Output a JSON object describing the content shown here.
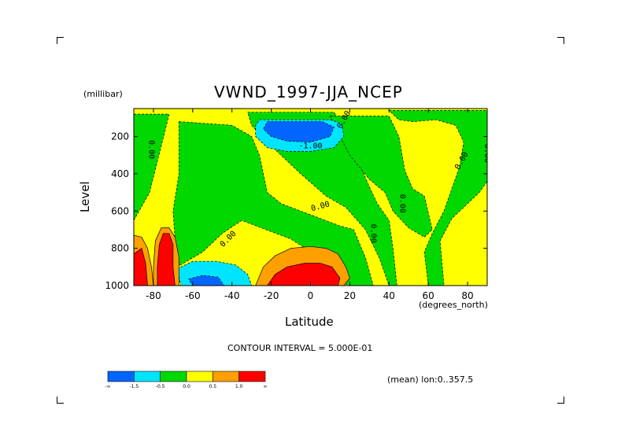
{
  "chart_data": {
    "type": "heatmap",
    "title": "VWND_1997-JJA_NCEP",
    "xlabel": "Latitude",
    "x_unit": "(degrees_north)",
    "ylabel": "Level",
    "y_unit": "(millibar)",
    "xlim": [
      -90,
      90
    ],
    "ylim": [
      1000,
      50
    ],
    "x_ticks": [
      -80,
      -60,
      -40,
      -20,
      0,
      20,
      40,
      60,
      80
    ],
    "x_tick_labels": [
      "-80",
      "-60",
      "-40",
      "-20",
      "0",
      "20",
      "40",
      "60",
      "80"
    ],
    "y_ticks": [
      200,
      400,
      600,
      800,
      1000
    ],
    "y_tick_labels": [
      "200",
      "400",
      "600",
      "800",
      "1000"
    ],
    "contour_interval_text": "CONTOUR INTERVAL = 5.000E-01",
    "mean_text": "(mean) lon:0..357.5",
    "legend": {
      "placement": "bottom-left",
      "colors": [
        "#0066ff",
        "#00e5ff",
        "#00d800",
        "#ffff00",
        "#ffa000",
        "#ff0000"
      ],
      "boundary_labels": [
        "-∞",
        "-1.5",
        "-0.5",
        "0.0",
        "0.5",
        "1.0",
        "∞"
      ]
    },
    "contour_labels": [
      {
        "text": "0.00",
        "lat": -81,
        "lev": 270,
        "rot": 90
      },
      {
        "text": "0.00",
        "lat": -42,
        "lev": 750,
        "rot": -45
      },
      {
        "text": "0.00",
        "lat": 5,
        "lev": 575,
        "rot": -15
      },
      {
        "text": "0.00",
        "lat": 17,
        "lev": 110,
        "rot": -60
      },
      {
        "text": "-1.00",
        "lat": 0,
        "lev": 250,
        "rot": 0
      },
      {
        "text": "0.00",
        "lat": 32,
        "lev": 720,
        "rot": 90
      },
      {
        "text": "0.00",
        "lat": 47,
        "lev": 560,
        "rot": 90
      },
      {
        "text": "0.00",
        "lat": 77,
        "lev": 330,
        "rot": -60
      },
      {
        "text": "0.00",
        "lat": 90,
        "lev": 290,
        "rot": 90
      }
    ],
    "regions": [
      {
        "value_class": "negative",
        "color": "#00d800",
        "poly": [
          [
            -90,
            80
          ],
          [
            -72,
            80
          ],
          [
            -76,
            250
          ],
          [
            -82,
            500
          ],
          [
            -90,
            650
          ]
        ]
      },
      {
        "value_class": "negative",
        "color": "#00d800",
        "poly": [
          [
            -67,
            120
          ],
          [
            -40,
            140
          ],
          [
            -30,
            200
          ],
          [
            -26,
            300
          ],
          [
            -22,
            500
          ],
          [
            -15,
            560
          ],
          [
            -5,
            600
          ],
          [
            0,
            620
          ],
          [
            5,
            640
          ],
          [
            15,
            680
          ],
          [
            22,
            700
          ],
          [
            28,
            850
          ],
          [
            32,
            1000
          ],
          [
            20,
            1000
          ],
          [
            15,
            980
          ],
          [
            5,
            850
          ],
          [
            -10,
            750
          ],
          [
            -25,
            690
          ],
          [
            -35,
            650
          ],
          [
            -45,
            720
          ],
          [
            -55,
            820
          ],
          [
            -68,
            900
          ],
          [
            -70,
            600
          ],
          [
            -67,
            400
          ]
        ]
      },
      {
        "value_class": "negative",
        "color": "#00d800",
        "poly": [
          [
            -32,
            70
          ],
          [
            12,
            70
          ],
          [
            20,
            200
          ],
          [
            25,
            350
          ],
          [
            30,
            470
          ],
          [
            34,
            560
          ],
          [
            40,
            650
          ],
          [
            42,
            800
          ],
          [
            44,
            1000
          ],
          [
            40,
            1000
          ],
          [
            35,
            850
          ],
          [
            28,
            700
          ],
          [
            18,
            580
          ],
          [
            8,
            520
          ],
          [
            -5,
            400
          ],
          [
            -15,
            300
          ],
          [
            -22,
            230
          ],
          [
            -30,
            140
          ]
        ]
      },
      {
        "value_class": "negative",
        "color": "#00d800",
        "poly": [
          [
            10,
            90
          ],
          [
            40,
            90
          ],
          [
            45,
            200
          ],
          [
            48,
            380
          ],
          [
            52,
            480
          ],
          [
            58,
            520
          ],
          [
            62,
            700
          ],
          [
            58,
            740
          ],
          [
            50,
            690
          ],
          [
            42,
            600
          ],
          [
            38,
            500
          ],
          [
            30,
            430
          ],
          [
            20,
            300
          ],
          [
            15,
            200
          ]
        ]
      },
      {
        "value_class": "negative",
        "color": "#00d800",
        "poly": [
          [
            40,
            60
          ],
          [
            90,
            60
          ],
          [
            90,
            440
          ],
          [
            86,
            500
          ],
          [
            80,
            560
          ],
          [
            72,
            640
          ],
          [
            66,
            760
          ],
          [
            68,
            1000
          ],
          [
            60,
            1000
          ],
          [
            58,
            820
          ],
          [
            62,
            720
          ],
          [
            68,
            600
          ],
          [
            72,
            480
          ],
          [
            76,
            360
          ],
          [
            78,
            230
          ],
          [
            74,
            140
          ],
          [
            64,
            110
          ],
          [
            52,
            120
          ],
          [
            45,
            110
          ]
        ]
      },
      {
        "value_class": "negative",
        "color": "#00e5ff",
        "poly": [
          [
            -26,
            110
          ],
          [
            10,
            110
          ],
          [
            16,
            130
          ],
          [
            17,
            200
          ],
          [
            12,
            260
          ],
          [
            0,
            280
          ],
          [
            -12,
            280
          ],
          [
            -22,
            260
          ],
          [
            -28,
            200
          ],
          [
            -28,
            140
          ]
        ]
      },
      {
        "value_class": "negative",
        "color": "#0066ff",
        "poly": [
          [
            -22,
            120
          ],
          [
            6,
            120
          ],
          [
            12,
            150
          ],
          [
            10,
            200
          ],
          [
            0,
            230
          ],
          [
            -12,
            225
          ],
          [
            -20,
            200
          ],
          [
            -24,
            160
          ]
        ]
      },
      {
        "value_class": "negative",
        "color": "#00e5ff",
        "poly": [
          [
            -68,
            910
          ],
          [
            -60,
            870
          ],
          [
            -48,
            870
          ],
          [
            -38,
            890
          ],
          [
            -32,
            940
          ],
          [
            -30,
            1000
          ],
          [
            -66,
            1000
          ]
        ]
      },
      {
        "value_class": "negative",
        "color": "#0066ff",
        "poly": [
          [
            -62,
            965
          ],
          [
            -55,
            945
          ],
          [
            -47,
            955
          ],
          [
            -44,
            1000
          ],
          [
            -60,
            1000
          ]
        ]
      },
      {
        "value_class": "positive",
        "color": "#ffa000",
        "poly": [
          [
            -90,
            730
          ],
          [
            -86,
            740
          ],
          [
            -83,
            800
          ],
          [
            -81,
            900
          ],
          [
            -80,
            1000
          ],
          [
            -90,
            1000
          ]
        ]
      },
      {
        "value_class": "positive",
        "color": "#ff0000",
        "poly": [
          [
            -90,
            830
          ],
          [
            -86,
            800
          ],
          [
            -84,
            880
          ],
          [
            -83,
            1000
          ],
          [
            -90,
            1000
          ]
        ]
      },
      {
        "value_class": "positive",
        "color": "#ffa000",
        "poly": [
          [
            -79,
            760
          ],
          [
            -76,
            690
          ],
          [
            -72,
            690
          ],
          [
            -69,
            740
          ],
          [
            -67,
            850
          ],
          [
            -67,
            1000
          ],
          [
            -80,
            1000
          ],
          [
            -80,
            900
          ]
        ]
      },
      {
        "value_class": "positive",
        "color": "#ff0000",
        "poly": [
          [
            -77,
            780
          ],
          [
            -75,
            720
          ],
          [
            -72,
            720
          ],
          [
            -70,
            780
          ],
          [
            -70,
            900
          ],
          [
            -69,
            1000
          ],
          [
            -78,
            1000
          ],
          [
            -78,
            900
          ]
        ]
      },
      {
        "value_class": "positive",
        "color": "#ffa000",
        "poly": [
          [
            -28,
            1000
          ],
          [
            -24,
            900
          ],
          [
            -18,
            840
          ],
          [
            -10,
            800
          ],
          [
            0,
            790
          ],
          [
            8,
            800
          ],
          [
            14,
            830
          ],
          [
            18,
            900
          ],
          [
            20,
            960
          ],
          [
            17,
            1000
          ]
        ]
      },
      {
        "value_class": "positive",
        "color": "#ff0000",
        "poly": [
          [
            -22,
            1000
          ],
          [
            -18,
            940
          ],
          [
            -12,
            900
          ],
          [
            -3,
            880
          ],
          [
            5,
            880
          ],
          [
            11,
            900
          ],
          [
            15,
            960
          ],
          [
            14,
            1000
          ]
        ]
      }
    ]
  }
}
